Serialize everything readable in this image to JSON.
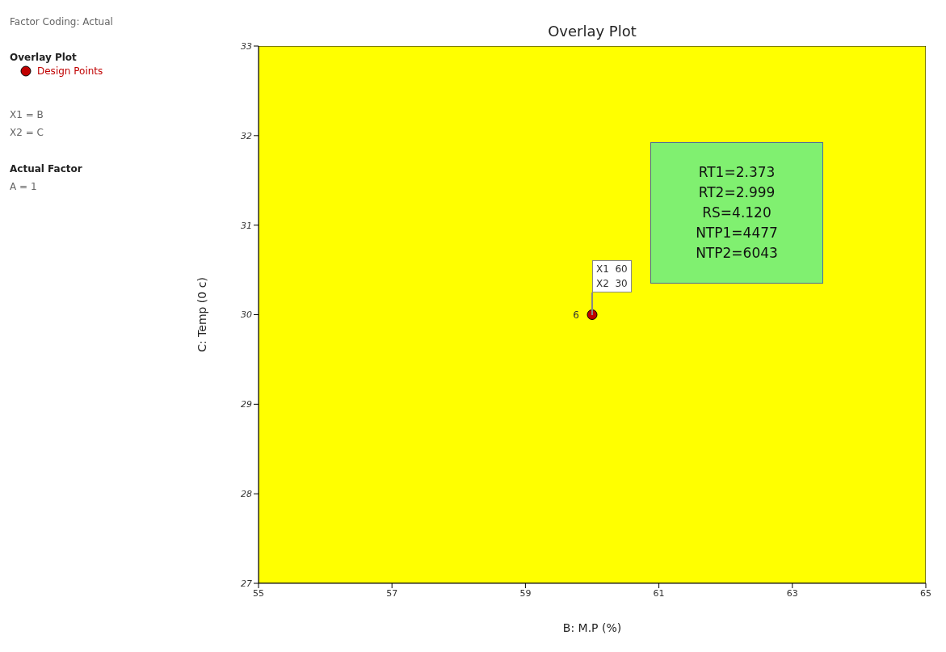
{
  "chart_data": {
    "type": "scatter",
    "title": "Overlay Plot",
    "xlabel": "B: M.P (%)",
    "ylabel": "C: Temp (0 c)",
    "legend_title": "Overlay Plot",
    "legend": "top left",
    "marker": "circle",
    "grid": false,
    "series": [
      {
        "name": "Design Points",
        "color": "#c00000",
        "x": [
          60
        ],
        "values": [
          30
        ]
      }
    ],
    "xlim": [
      55,
      65
    ],
    "xticks": [
      55,
      57,
      59,
      61,
      63,
      65
    ],
    "ylim": [
      27,
      33
    ],
    "yticks": [
      27,
      28,
      29,
      30,
      31,
      32,
      33
    ],
    "bands": [
      {
        "axis": "x",
        "from": 55,
        "to": 65,
        "color": "#ffff00"
      }
    ],
    "annotations": [
      "Factor Coding: Actual",
      "X1 = B",
      "X2 = C",
      "Actual Factor",
      "A = 1",
      {
        "text": "6",
        "x": 60,
        "y": 30
      },
      "X1  60",
      "X2  30",
      "RT1=2.373",
      "RT2=2.999",
      "RS=4.120",
      "NTP1=4477",
      "NTP2=6043"
    ]
  }
}
